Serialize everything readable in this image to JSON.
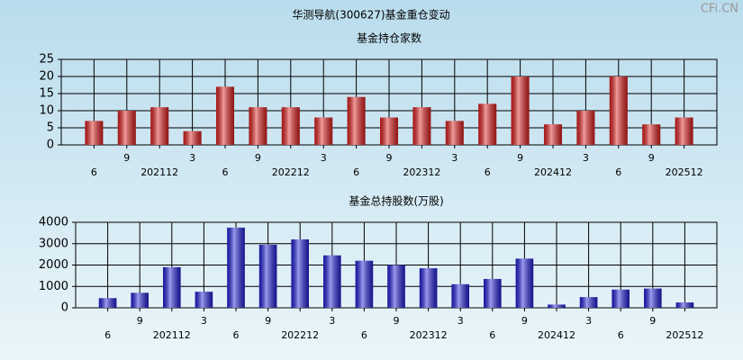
{
  "title": "华测导航(300627)基金重仓变动",
  "watermark": "CFi.CN",
  "chart_data": [
    {
      "type": "bar",
      "title": "基金持仓家数",
      "categories": [
        "6",
        "9",
        "202112",
        "3",
        "6",
        "9",
        "202212",
        "3",
        "6",
        "9",
        "202312",
        "3",
        "6",
        "9",
        "202412",
        "3",
        "6",
        "9",
        "202512"
      ],
      "values": [
        7,
        10,
        11,
        4,
        17,
        11,
        11,
        8,
        14,
        8,
        11,
        7,
        12,
        20,
        6,
        10,
        20,
        6,
        8
      ],
      "color": "#e02020",
      "ylim": [
        0,
        25
      ],
      "yticks": [
        0,
        5,
        10,
        15,
        20,
        25
      ],
      "grid": true
    },
    {
      "type": "bar",
      "title": "基金总持股数(万股)",
      "categories": [
        "6",
        "9",
        "202112",
        "3",
        "6",
        "9",
        "202212",
        "3",
        "6",
        "9",
        "202312",
        "3",
        "6",
        "9",
        "202412",
        "3",
        "6",
        "9",
        "202512"
      ],
      "values": [
        450,
        700,
        1900,
        750,
        3750,
        2950,
        3200,
        2450,
        2200,
        2000,
        1850,
        1100,
        1350,
        2300,
        150,
        500,
        850,
        900,
        250
      ],
      "color": "#2020d8",
      "ylim": [
        0,
        4000
      ],
      "yticks": [
        0,
        1000,
        2000,
        3000,
        4000
      ],
      "grid": true
    }
  ]
}
